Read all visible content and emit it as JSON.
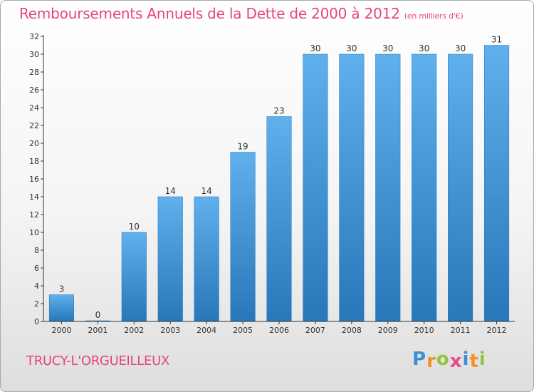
{
  "chart_data": {
    "type": "bar",
    "title": "Remboursements Annuels de la Dette de 2000 à 2012",
    "subtitle": "(en milliers d'€)",
    "categories": [
      "2000",
      "2001",
      "2002",
      "2003",
      "2004",
      "2005",
      "2006",
      "2007",
      "2008",
      "2009",
      "2010",
      "2011",
      "2012"
    ],
    "values": [
      3,
      0,
      10,
      14,
      14,
      19,
      23,
      30,
      30,
      30,
      30,
      30,
      31
    ],
    "ylim": [
      0,
      32
    ],
    "yticks": [
      0,
      2,
      4,
      6,
      8,
      10,
      12,
      14,
      16,
      18,
      20,
      22,
      24,
      26,
      28,
      30,
      32
    ],
    "grid": false,
    "legend": "none",
    "bar_color": "#3a8fd6"
  },
  "footer": {
    "place_name": "TRUCY-L'ORGUEILLEUX"
  },
  "logo": {
    "letters": [
      "P",
      "r",
      "o",
      "x",
      "i",
      "t",
      "i"
    ],
    "colors": [
      "#3d8fd8",
      "#f29422",
      "#8dc63f",
      "#e84b8a",
      "#3d8fd8",
      "#f29422",
      "#8dc63f"
    ]
  },
  "colors": {
    "title": "#e8447e",
    "axis": "#333333"
  }
}
